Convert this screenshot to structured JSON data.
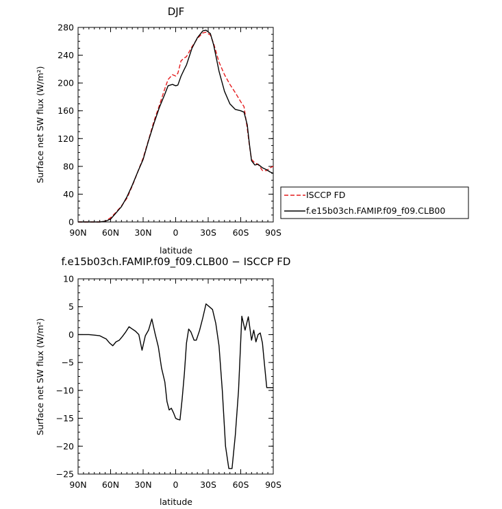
{
  "chart_data": [
    {
      "type": "line",
      "title": "DJF",
      "xlabel": "latitude",
      "ylabel": "Surface net SW flux (W/m²)",
      "xlim": [
        90,
        -90
      ],
      "ylim": [
        0,
        280
      ],
      "xticks": [
        90,
        60,
        30,
        0,
        -30,
        -60,
        -90
      ],
      "xtick_labels": [
        "90N",
        "60N",
        "30N",
        "0",
        "30S",
        "60S",
        "90S"
      ],
      "yticks": [
        0,
        40,
        80,
        120,
        160,
        200,
        240,
        280
      ],
      "ytick_labels": [
        "0",
        "40",
        "80",
        "120",
        "160",
        "200",
        "240",
        "280"
      ],
      "legend_position": "outside-right",
      "series": [
        {
          "name": "ISCCP FD",
          "color": "#e41a1c",
          "dash": "dashed",
          "x": [
            90,
            85,
            80,
            75,
            70,
            65,
            60,
            55,
            50,
            45,
            40,
            35,
            30,
            25,
            20,
            15,
            10,
            7,
            3,
            0,
            -2,
            -5,
            -8,
            -10,
            -15,
            -20,
            -25,
            -28,
            -32,
            -35,
            -40,
            -45,
            -50,
            -55,
            -60,
            -63,
            -66,
            -68,
            -70,
            -73,
            -76,
            -80,
            -84,
            -87,
            -90
          ],
          "y": [
            0,
            0,
            0,
            0,
            0,
            1,
            6,
            14,
            23,
            34,
            52,
            72,
            92,
            118,
            145,
            168,
            192,
            205,
            212,
            210,
            214,
            232,
            236,
            238,
            252,
            264,
            272,
            273,
            269,
            257,
            230,
            212,
            198,
            186,
            173,
            166,
            135,
            110,
            90,
            85,
            83,
            74,
            74,
            78,
            80
          ]
        },
        {
          "name": "f.e15b03ch.FAMIP.f09_f09.CLB00",
          "color": "#000000",
          "dash": "solid",
          "x": [
            90,
            85,
            80,
            75,
            70,
            65,
            60,
            55,
            50,
            45,
            40,
            35,
            30,
            25,
            20,
            15,
            10,
            7,
            3,
            0,
            -2,
            -5,
            -8,
            -10,
            -15,
            -20,
            -25,
            -28,
            -32,
            -35,
            -40,
            -45,
            -50,
            -55,
            -60,
            -63,
            -66,
            -68,
            -70,
            -73,
            -76,
            -80,
            -84,
            -87,
            -90
          ],
          "y": [
            0,
            0,
            0,
            0,
            0,
            1,
            4,
            13,
            22,
            36,
            53,
            72,
            90,
            117,
            142,
            165,
            184,
            196,
            198,
            196,
            197,
            210,
            220,
            226,
            250,
            265,
            275,
            276,
            271,
            255,
            217,
            188,
            170,
            162,
            160,
            158,
            140,
            112,
            88,
            82,
            83,
            78,
            75,
            72,
            70
          ]
        }
      ]
    },
    {
      "type": "line",
      "title": "f.e15b03ch.FAMIP.f09_f09.CLB00 − ISCCP FD",
      "xlabel": "latitude",
      "ylabel": "Surface net SW flux (W/m²)",
      "xlim": [
        90,
        -90
      ],
      "ylim": [
        -25,
        10
      ],
      "xticks": [
        90,
        60,
        30,
        0,
        -30,
        -60,
        -90
      ],
      "xtick_labels": [
        "90N",
        "60N",
        "30N",
        "0",
        "30S",
        "60S",
        "90S"
      ],
      "yticks": [
        -25,
        -20,
        -15,
        -10,
        -5,
        0,
        5,
        10
      ],
      "ytick_labels": [
        "−25",
        "−20",
        "−15",
        "−10",
        "−5",
        "0",
        "5",
        "10"
      ],
      "series": [
        {
          "color": "#000000",
          "dash": "solid",
          "x": [
            90,
            85,
            80,
            75,
            70,
            67,
            64,
            61,
            58,
            55,
            52,
            49,
            46,
            43,
            40,
            37,
            34,
            31,
            28,
            25,
            22,
            19,
            16,
            13,
            10,
            8,
            6,
            4,
            2,
            0,
            -2,
            -4,
            -6,
            -8,
            -10,
            -12,
            -14,
            -17,
            -19,
            -22,
            -25,
            -28,
            -31,
            -34,
            -37,
            -40,
            -43,
            -46,
            -49,
            -52,
            -55,
            -58,
            -61,
            -64,
            -67,
            -70,
            -72,
            -74,
            -76,
            -78,
            -80,
            -82,
            -84,
            -86,
            -88,
            -90
          ],
          "y": [
            0,
            0,
            0,
            -0.1,
            -0.2,
            -0.5,
            -0.8,
            -1.5,
            -2,
            -1.3,
            -1,
            -0.3,
            0.5,
            1.4,
            1,
            0.6,
            0,
            -2.8,
            -0.2,
            0.8,
            2.8,
            0.2,
            -2.2,
            -6,
            -8.5,
            -12,
            -13.5,
            -13.2,
            -14,
            -15,
            -15.2,
            -15.3,
            -11.5,
            -7,
            -1.5,
            1,
            0.5,
            -1,
            -1,
            0.7,
            3,
            5.5,
            5,
            4.5,
            2,
            -2,
            -10,
            -20,
            -24,
            -24,
            -18,
            -10,
            3.3,
            0.8,
            3.2,
            -1,
            0.8,
            -1.3,
            0,
            0.3,
            -1.5,
            -5.5,
            -9.5,
            -9.5,
            -9.5,
            -9.5
          ]
        }
      ]
    }
  ]
}
